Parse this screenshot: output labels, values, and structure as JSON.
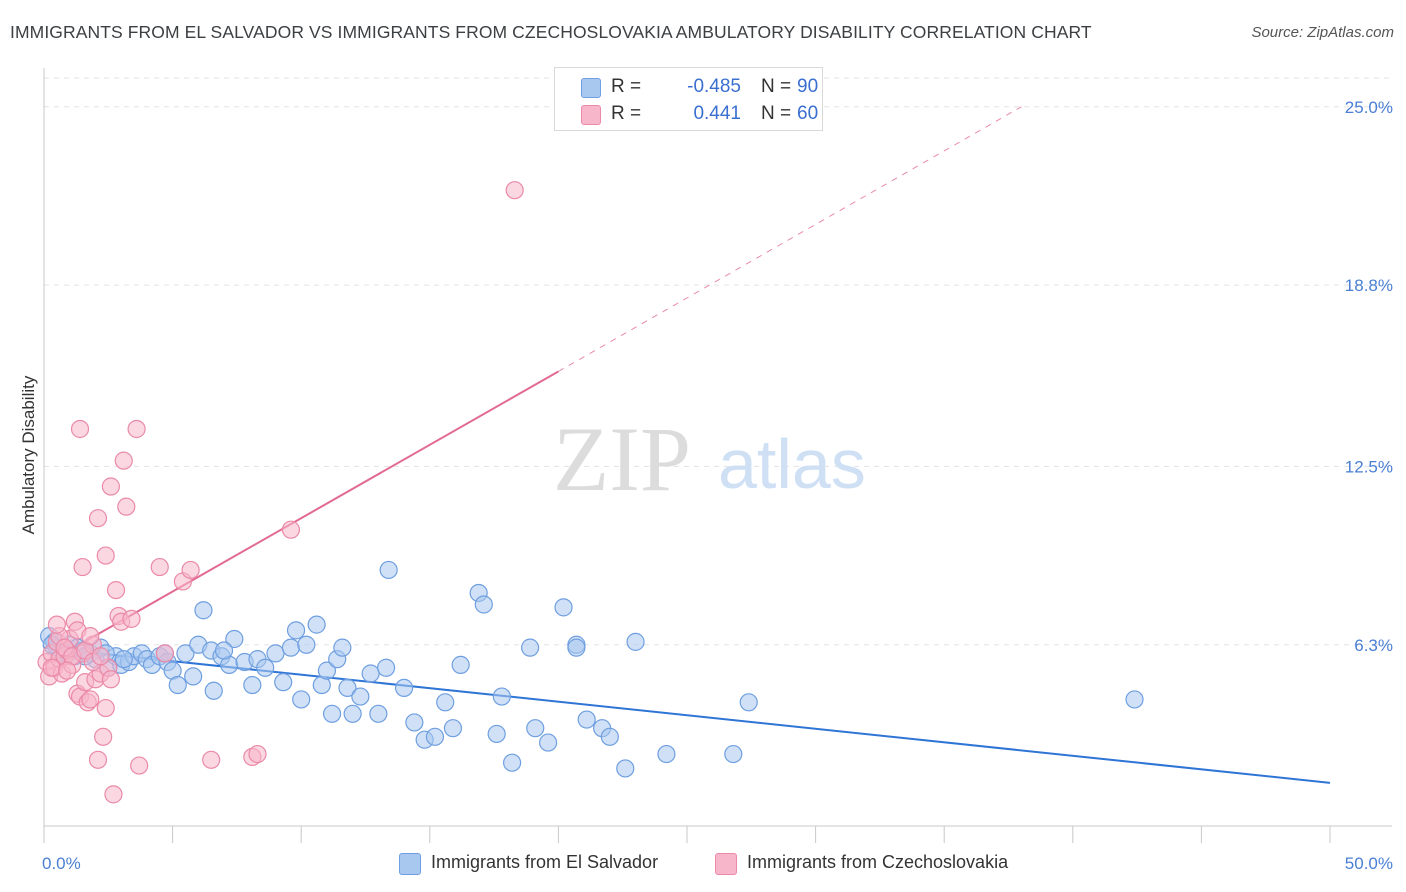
{
  "header": {
    "title": "IMMIGRANTS FROM EL SALVADOR VS IMMIGRANTS FROM CZECHOSLOVAKIA AMBULATORY DISABILITY CORRELATION CHART",
    "source": "Source: ZipAtlas.com"
  },
  "watermark": {
    "zip": "ZIP",
    "atlas": "atlas"
  },
  "colors": {
    "blue_fill": "#a9c8f0",
    "blue_stroke": "#6f9fe0",
    "blue_line": "#2f75d6",
    "pink_fill": "#f7b6ca",
    "pink_stroke": "#ea8aa8",
    "pink_line": "#e26a92",
    "tick_text": "#4a7fd4",
    "grid": "#e3e3e3"
  },
  "legend": {
    "rows": [
      {
        "r_label": "R =",
        "r_value": "-0.485",
        "n_label": "N =",
        "n_value": "90",
        "color": "#a9c8f0",
        "border": "#6f9fe0"
      },
      {
        "r_label": "R =",
        "r_value": "0.441",
        "n_label": "N =",
        "n_value": "60",
        "color": "#f7b6ca",
        "border": "#ea8aa8"
      }
    ]
  },
  "bottom_legend": [
    {
      "label": "Immigrants from El Salvador",
      "color": "#a9c8f0",
      "border": "#6f9fe0"
    },
    {
      "label": "Immigrants from Czechoslovakia",
      "color": "#f7b6ca",
      "border": "#ea8aa8"
    }
  ],
  "chart_data": {
    "type": "scatter",
    "title": "IMMIGRANTS FROM EL SALVADOR VS IMMIGRANTS FROM CZECHOSLOVAKIA AMBULATORY DISABILITY CORRELATION CHART",
    "xlabel": "",
    "ylabel": "Ambulatory Disability",
    "xlim": [
      0,
      50
    ],
    "ylim": [
      0,
      26
    ],
    "x_tick_labels": [
      "0.0%",
      "50.0%"
    ],
    "y_ticks": [
      6.3,
      12.5,
      18.8,
      25.0
    ],
    "y_tick_labels": [
      "6.3%",
      "12.5%",
      "18.8%",
      "25.0%"
    ],
    "grid": "horizontal dashed",
    "legend_position": "top-center",
    "series": [
      {
        "name": "Immigrants from El Salvador",
        "r": -0.485,
        "n": 90,
        "trend": {
          "x": [
            0,
            50
          ],
          "y": [
            6.2,
            1.5
          ]
        },
        "points": [
          [
            0.2,
            6.6
          ],
          [
            0.4,
            6.4
          ],
          [
            0.5,
            6.2
          ],
          [
            0.6,
            6.0
          ],
          [
            0.8,
            6.1
          ],
          [
            1.0,
            6.3
          ],
          [
            1.2,
            5.9
          ],
          [
            1.5,
            6.1
          ],
          [
            1.8,
            6.0
          ],
          [
            2.0,
            5.8
          ],
          [
            2.2,
            6.2
          ],
          [
            2.5,
            5.5
          ],
          [
            2.8,
            5.9
          ],
          [
            3.0,
            5.6
          ],
          [
            3.3,
            5.7
          ],
          [
            3.5,
            5.9
          ],
          [
            3.8,
            6.0
          ],
          [
            4.0,
            5.8
          ],
          [
            4.2,
            5.6
          ],
          [
            4.5,
            5.9
          ],
          [
            4.8,
            5.7
          ],
          [
            5.0,
            5.4
          ],
          [
            5.2,
            4.9
          ],
          [
            5.5,
            6.0
          ],
          [
            5.8,
            5.2
          ],
          [
            6.0,
            6.3
          ],
          [
            6.2,
            7.5
          ],
          [
            6.5,
            6.1
          ],
          [
            6.6,
            4.7
          ],
          [
            6.9,
            5.9
          ],
          [
            7.2,
            5.6
          ],
          [
            7.4,
            6.5
          ],
          [
            7.8,
            5.7
          ],
          [
            8.1,
            4.9
          ],
          [
            8.3,
            5.8
          ],
          [
            8.6,
            5.5
          ],
          [
            9.0,
            6.0
          ],
          [
            9.3,
            5.0
          ],
          [
            9.6,
            6.2
          ],
          [
            9.8,
            6.8
          ],
          [
            10.0,
            4.4
          ],
          [
            10.2,
            6.3
          ],
          [
            10.6,
            7.0
          ],
          [
            10.8,
            4.9
          ],
          [
            11.0,
            5.4
          ],
          [
            11.2,
            3.9
          ],
          [
            11.4,
            5.8
          ],
          [
            11.6,
            6.2
          ],
          [
            11.8,
            4.8
          ],
          [
            12.0,
            3.9
          ],
          [
            12.3,
            4.5
          ],
          [
            12.7,
            5.3
          ],
          [
            13.0,
            3.9
          ],
          [
            13.3,
            5.5
          ],
          [
            13.4,
            8.9
          ],
          [
            14.0,
            4.8
          ],
          [
            14.4,
            3.6
          ],
          [
            14.8,
            3.0
          ],
          [
            15.2,
            3.1
          ],
          [
            15.6,
            4.3
          ],
          [
            15.9,
            3.4
          ],
          [
            16.2,
            5.6
          ],
          [
            16.9,
            8.1
          ],
          [
            17.1,
            7.7
          ],
          [
            17.6,
            3.2
          ],
          [
            17.8,
            4.5
          ],
          [
            18.2,
            2.2
          ],
          [
            18.9,
            6.2
          ],
          [
            19.1,
            3.4
          ],
          [
            19.6,
            2.9
          ],
          [
            20.2,
            7.6
          ],
          [
            20.7,
            6.3
          ],
          [
            21.1,
            3.7
          ],
          [
            21.7,
            3.4
          ],
          [
            22.0,
            3.1
          ],
          [
            22.6,
            2.0
          ],
          [
            23.0,
            6.4
          ],
          [
            24.2,
            2.5
          ],
          [
            26.8,
            2.5
          ],
          [
            27.4,
            4.3
          ],
          [
            42.4,
            4.4
          ],
          [
            0.3,
            6.3
          ],
          [
            0.9,
            6.0
          ],
          [
            1.3,
            6.2
          ],
          [
            1.6,
            5.9
          ],
          [
            2.4,
            6.0
          ],
          [
            3.1,
            5.8
          ],
          [
            4.7,
            6.0
          ],
          [
            7.0,
            6.1
          ],
          [
            20.7,
            6.2
          ]
        ]
      },
      {
        "name": "Immigrants from Czechoslovakia",
        "r": 0.441,
        "n": 60,
        "trend": {
          "x": [
            0,
            20
          ],
          "y": [
            5.6,
            15.8
          ]
        },
        "trend_dashed_extension": {
          "x": [
            20,
            38
          ],
          "y": [
            15.8,
            25.0
          ]
        },
        "points": [
          [
            0.1,
            5.7
          ],
          [
            0.2,
            5.2
          ],
          [
            0.3,
            6.0
          ],
          [
            0.4,
            5.5
          ],
          [
            0.5,
            6.4
          ],
          [
            0.6,
            5.8
          ],
          [
            0.7,
            5.3
          ],
          [
            0.8,
            5.9
          ],
          [
            0.9,
            6.1
          ],
          [
            1.0,
            6.5
          ],
          [
            1.1,
            5.6
          ],
          [
            1.2,
            7.1
          ],
          [
            1.3,
            4.6
          ],
          [
            1.4,
            4.5
          ],
          [
            1.5,
            6.0
          ],
          [
            1.6,
            5.0
          ],
          [
            1.7,
            4.3
          ],
          [
            1.8,
            4.4
          ],
          [
            1.9,
            6.3
          ],
          [
            2.0,
            5.1
          ],
          [
            2.1,
            2.3
          ],
          [
            2.2,
            5.3
          ],
          [
            2.3,
            3.1
          ],
          [
            2.4,
            4.1
          ],
          [
            2.5,
            5.5
          ],
          [
            2.6,
            5.1
          ],
          [
            2.7,
            1.1
          ],
          [
            2.8,
            8.2
          ],
          [
            2.9,
            7.3
          ],
          [
            3.0,
            7.1
          ],
          [
            3.1,
            12.7
          ],
          [
            3.2,
            11.1
          ],
          [
            3.4,
            7.2
          ],
          [
            3.6,
            13.8
          ],
          [
            3.7,
            2.1
          ],
          [
            4.5,
            9.0
          ],
          [
            4.7,
            6.0
          ],
          [
            5.4,
            8.5
          ],
          [
            5.7,
            8.9
          ],
          [
            6.5,
            2.3
          ],
          [
            8.1,
            2.4
          ],
          [
            8.3,
            2.5
          ],
          [
            9.6,
            10.3
          ],
          [
            18.3,
            22.1
          ],
          [
            1.4,
            13.8
          ],
          [
            2.1,
            10.7
          ],
          [
            2.4,
            9.4
          ],
          [
            2.6,
            11.8
          ],
          [
            1.5,
            9.0
          ],
          [
            0.3,
            5.5
          ],
          [
            0.6,
            6.6
          ],
          [
            0.8,
            6.2
          ],
          [
            1.1,
            5.9
          ],
          [
            1.3,
            6.8
          ],
          [
            1.6,
            6.1
          ],
          [
            1.9,
            5.7
          ],
          [
            2.2,
            5.9
          ],
          [
            0.5,
            7.0
          ],
          [
            0.9,
            5.4
          ],
          [
            1.8,
            6.6
          ]
        ]
      }
    ]
  }
}
